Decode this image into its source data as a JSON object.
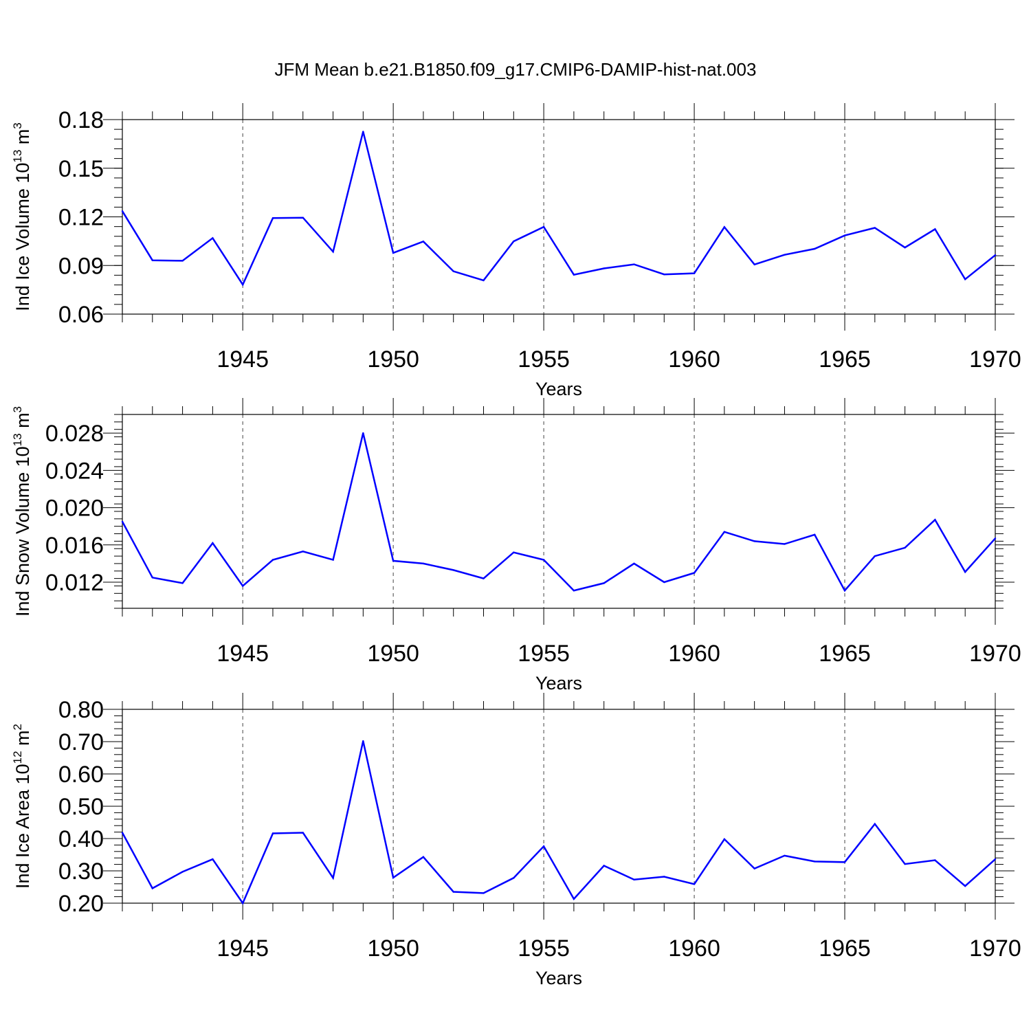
{
  "title": "JFM Mean b.e21.B1850.f09_g17.CMIP6-DAMIP-hist-nat.003",
  "colors": {
    "line": "#0000ff",
    "axis": "#000000",
    "grid": "#444444"
  },
  "chart_data": [
    {
      "type": "line",
      "ylabel": {
        "main": "Ind Ice Volume 10",
        "exp": "13",
        "unit": " m",
        "unit_exp": "3"
      },
      "xlabel": "Years",
      "xlim": [
        1941,
        1970
      ],
      "ylim": [
        0.06,
        0.18
      ],
      "yticks": [
        0.06,
        0.09,
        0.12,
        0.15,
        0.18
      ],
      "ytick_labels": [
        "0.06",
        "0.09",
        "0.12",
        "0.15",
        "0.18"
      ],
      "yminor_step": 0.006,
      "xticks": [
        1945,
        1950,
        1955,
        1960,
        1965,
        1970
      ],
      "xtick_labels": [
        "1945",
        "1950",
        "1955",
        "1960",
        "1965",
        "1970"
      ],
      "grid_x": [
        1945,
        1950,
        1955,
        1960,
        1965
      ],
      "series": [
        {
          "name": "Ind Ice Volume",
          "x": [
            1941,
            1942,
            1943,
            1944,
            1945,
            1946,
            1947,
            1948,
            1949,
            1950,
            1951,
            1952,
            1953,
            1954,
            1955,
            1956,
            1957,
            1958,
            1959,
            1960,
            1961,
            1962,
            1963,
            1964,
            1965,
            1966,
            1967,
            1968,
            1969,
            1970
          ],
          "values": [
            0.1235,
            0.0932,
            0.0929,
            0.1069,
            0.0782,
            0.1193,
            0.1195,
            0.0985,
            0.1726,
            0.0978,
            0.1048,
            0.0864,
            0.0808,
            0.1049,
            0.1138,
            0.0843,
            0.0882,
            0.0907,
            0.0845,
            0.0852,
            0.1137,
            0.0906,
            0.0966,
            0.1003,
            0.1085,
            0.1132,
            0.1011,
            0.1124,
            0.0815,
            0.0964
          ]
        }
      ]
    },
    {
      "type": "line",
      "ylabel": {
        "main": "Ind Snow Volume 10",
        "exp": "13",
        "unit": " m",
        "unit_exp": "3"
      },
      "xlabel": "Years",
      "xlim": [
        1941,
        1970
      ],
      "ylim": [
        0.0092,
        0.03
      ],
      "yticks": [
        0.012,
        0.016,
        0.02,
        0.024,
        0.028
      ],
      "ytick_labels": [
        "0.012",
        "0.016",
        "0.020",
        "0.024",
        "0.028"
      ],
      "yminor_step": 0.0008,
      "xticks": [
        1945,
        1950,
        1955,
        1960,
        1965,
        1970
      ],
      "xtick_labels": [
        "1945",
        "1950",
        "1955",
        "1960",
        "1965",
        "1970"
      ],
      "grid_x": [
        1945,
        1950,
        1955,
        1960,
        1965
      ],
      "series": [
        {
          "name": "Ind Snow Volume",
          "x": [
            1941,
            1942,
            1943,
            1944,
            1945,
            1946,
            1947,
            1948,
            1949,
            1950,
            1951,
            1952,
            1953,
            1954,
            1955,
            1956,
            1957,
            1958,
            1959,
            1960,
            1961,
            1962,
            1963,
            1964,
            1965,
            1966,
            1967,
            1968,
            1969,
            1970
          ],
          "values": [
            0.0185,
            0.0125,
            0.0119,
            0.0162,
            0.0116,
            0.0144,
            0.0153,
            0.0144,
            0.028,
            0.0143,
            0.014,
            0.0133,
            0.0124,
            0.0152,
            0.0144,
            0.0111,
            0.0119,
            0.014,
            0.012,
            0.013,
            0.0174,
            0.0164,
            0.0161,
            0.0171,
            0.0111,
            0.0148,
            0.0157,
            0.0187,
            0.0131,
            0.0167
          ]
        }
      ]
    },
    {
      "type": "line",
      "ylabel": {
        "main": "Ind Ice Area 10",
        "exp": "12",
        "unit": " m",
        "unit_exp": "2"
      },
      "xlabel": "Years",
      "xlim": [
        1941,
        1970
      ],
      "ylim": [
        0.2,
        0.8
      ],
      "yticks": [
        0.2,
        0.3,
        0.4,
        0.5,
        0.6,
        0.7,
        0.8
      ],
      "ytick_labels": [
        "0.20",
        "0.30",
        "0.40",
        "0.50",
        "0.60",
        "0.70",
        "0.80"
      ],
      "yminor_step": 0.02,
      "xticks": [
        1945,
        1950,
        1955,
        1960,
        1965,
        1970
      ],
      "xtick_labels": [
        "1945",
        "1950",
        "1955",
        "1960",
        "1965",
        "1970"
      ],
      "grid_x": [
        1945,
        1950,
        1955,
        1960,
        1965
      ],
      "series": [
        {
          "name": "Ind Ice Area",
          "x": [
            1941,
            1942,
            1943,
            1944,
            1945,
            1946,
            1947,
            1948,
            1949,
            1950,
            1951,
            1952,
            1953,
            1954,
            1955,
            1956,
            1957,
            1958,
            1959,
            1960,
            1961,
            1962,
            1963,
            1964,
            1965,
            1966,
            1967,
            1968,
            1969,
            1970
          ],
          "values": [
            0.418,
            0.246,
            0.297,
            0.336,
            0.2,
            0.416,
            0.418,
            0.278,
            0.702,
            0.279,
            0.343,
            0.235,
            0.231,
            0.278,
            0.376,
            0.213,
            0.316,
            0.273,
            0.282,
            0.259,
            0.398,
            0.307,
            0.347,
            0.329,
            0.327,
            0.445,
            0.321,
            0.333,
            0.253,
            0.336
          ]
        }
      ]
    }
  ]
}
